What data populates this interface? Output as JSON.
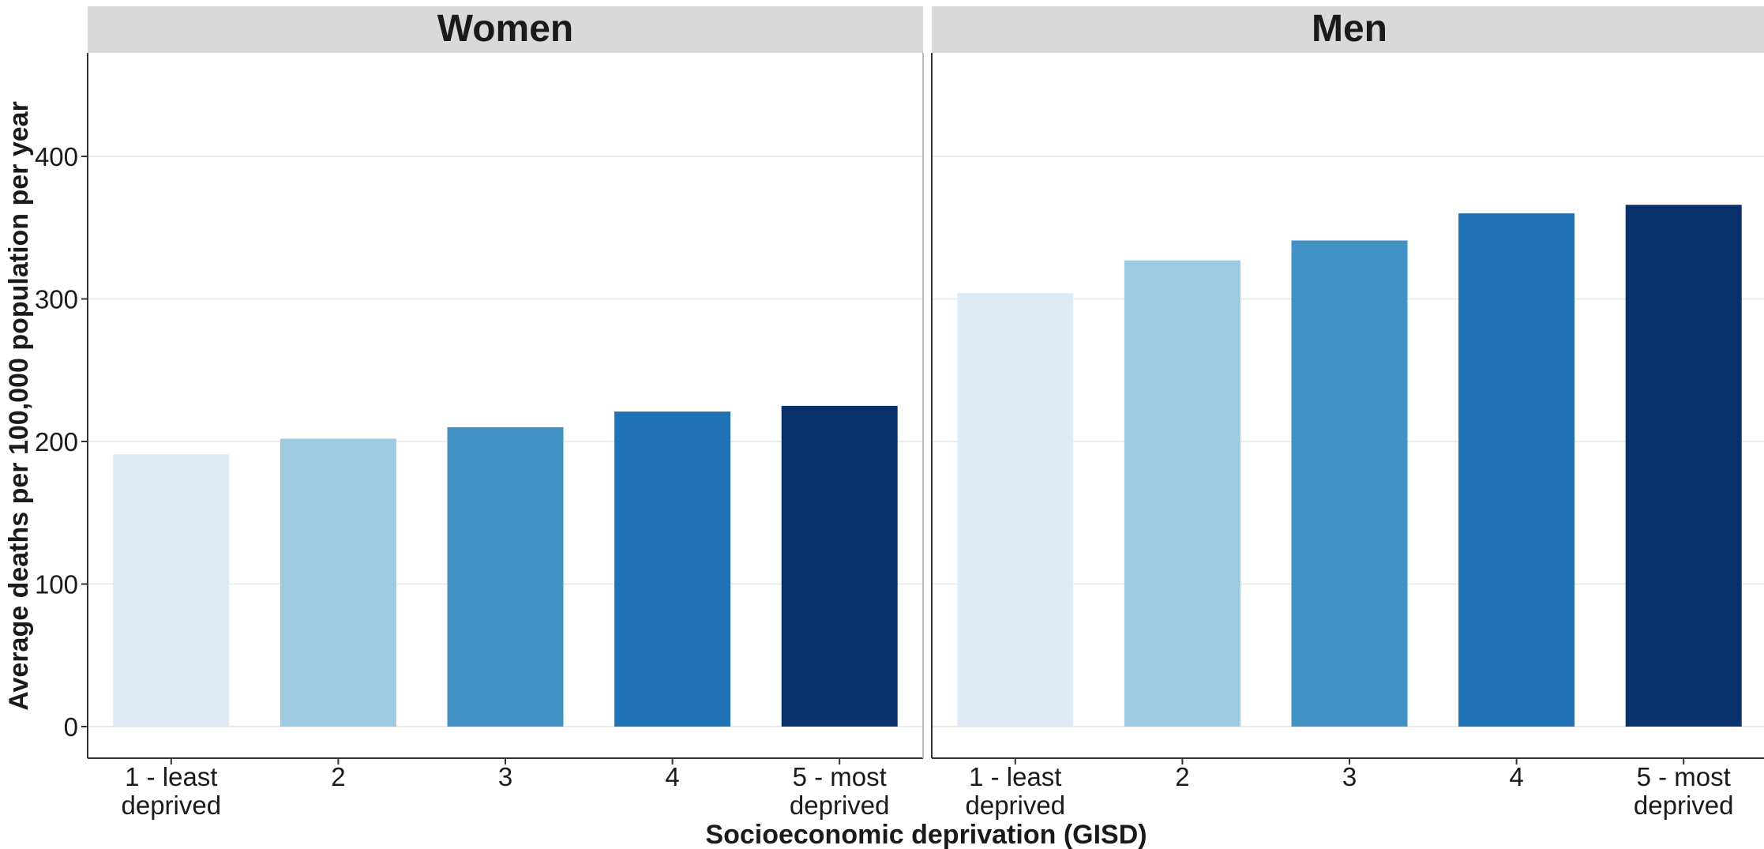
{
  "chart_data": {
    "type": "bar",
    "facets": [
      "Women",
      "Men"
    ],
    "categories": [
      [
        "1 - least",
        "deprived"
      ],
      [
        "2"
      ],
      [
        "3"
      ],
      [
        "4"
      ],
      [
        "5 - most",
        "deprived"
      ]
    ],
    "series": [
      {
        "name": "Women",
        "values": [
          191,
          202,
          210,
          221,
          225
        ]
      },
      {
        "name": "Men",
        "values": [
          304,
          327,
          341,
          360,
          366
        ]
      }
    ],
    "bar_colors": [
      "#deebf7",
      "#9ecae1",
      "#4292c6",
      "#2171b5",
      "#08306b"
    ],
    "strip_color": "#d9d9d9",
    "grid_color": "#ebebeb",
    "grid": true,
    "legend": "none",
    "ylim": [
      -22,
      480
    ],
    "yticks": [
      0,
      100,
      200,
      300,
      400
    ],
    "xlabel": "Socioeconomic deprivation (GISD)",
    "ylabel": "Average deaths per 100,000 population per year"
  }
}
